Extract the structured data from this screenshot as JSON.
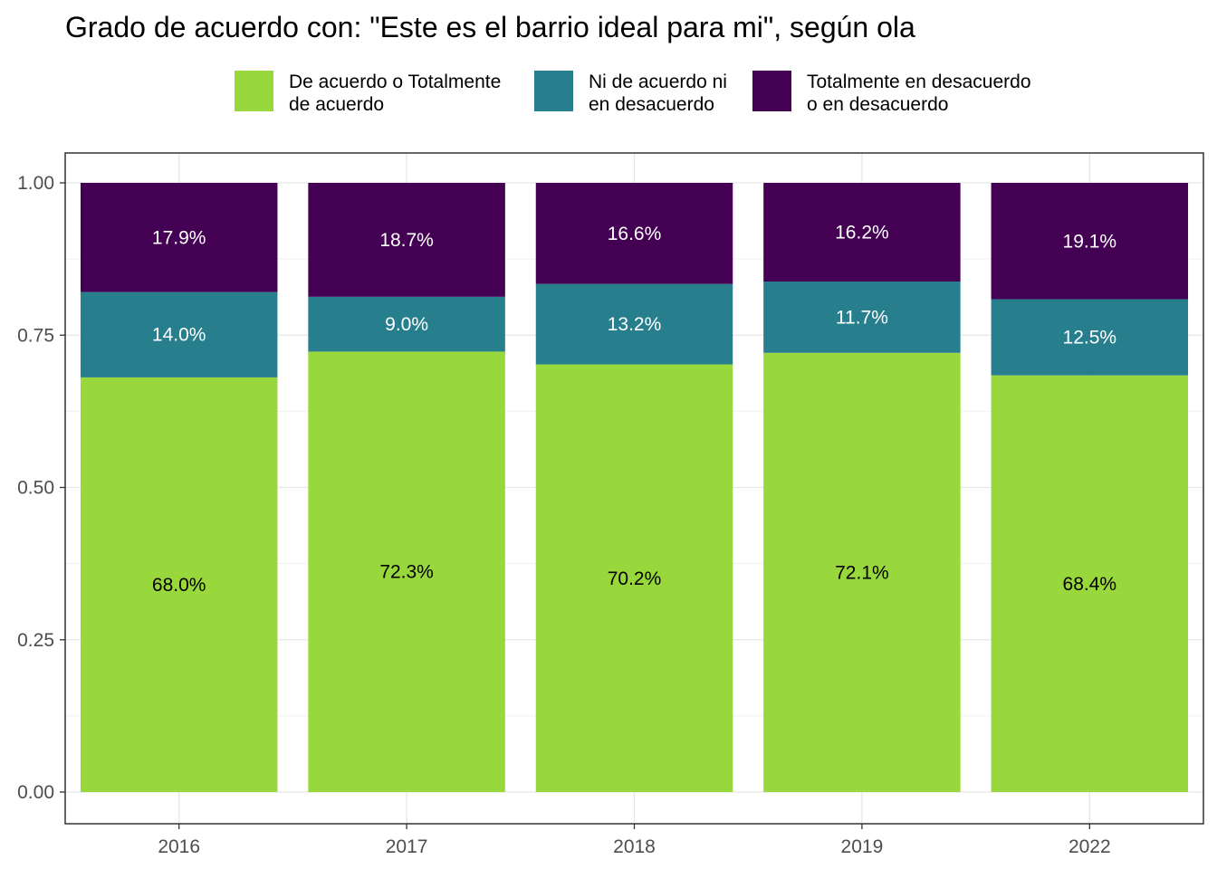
{
  "chart_data": {
    "type": "bar",
    "stacked": true,
    "title": "Grado de acuerdo con: \"Este es el barrio ideal para mi\", según ola",
    "xlabel": "",
    "ylabel": "",
    "categories": [
      "2016",
      "2017",
      "2018",
      "2019",
      "2022"
    ],
    "ylim": [
      0,
      1
    ],
    "yticks": [
      "0.00",
      "0.25",
      "0.50",
      "0.75",
      "1.00"
    ],
    "grid": true,
    "legend_position": "top",
    "series": [
      {
        "name": "De acuerdo o Totalmente de acuerdo",
        "legend_lines": [
          "De acuerdo o Totalmente",
          "de acuerdo"
        ],
        "color": "#99D83C",
        "label_color": "#000000",
        "values": [
          0.68,
          0.723,
          0.702,
          0.721,
          0.684
        ],
        "labels": [
          "68.0%",
          "72.3%",
          "70.2%",
          "72.1%",
          "68.4%"
        ]
      },
      {
        "name": "Ni de acuerdo ni en desacuerdo",
        "legend_lines": [
          "Ni de acuerdo ni",
          "en desacuerdo"
        ],
        "color": "#277F8E",
        "label_color": "#ffffff",
        "values": [
          0.14,
          0.09,
          0.132,
          0.117,
          0.125
        ],
        "labels": [
          "14.0%",
          "9.0%",
          "13.2%",
          "11.7%",
          "12.5%"
        ]
      },
      {
        "name": "Totalmente en desacuerdo o en desacuerdo",
        "legend_lines": [
          "Totalmente en desacuerdo",
          "o en desacuerdo"
        ],
        "color": "#440154",
        "label_color": "#ffffff",
        "values": [
          0.179,
          0.187,
          0.166,
          0.162,
          0.191
        ],
        "labels": [
          "17.9%",
          "18.7%",
          "16.6%",
          "16.2%",
          "19.1%"
        ]
      }
    ]
  }
}
